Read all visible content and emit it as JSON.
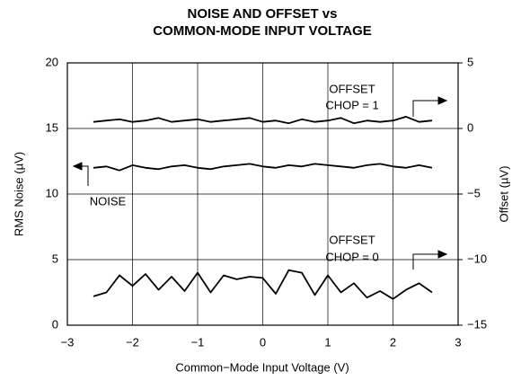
{
  "chart_data": {
    "type": "line",
    "title": [
      "NOISE AND OFFSET vs",
      "COMMON-MODE INPUT VOLTAGE"
    ],
    "x_label": "Common−Mode Input Voltage (V)",
    "y_label": "RMS Noise (µV)",
    "y2_label": "Offset (µV)",
    "annotations": [
      "OFFSET",
      "CHOP = 1",
      "NOISE",
      "OFFSET",
      "CHOP = 0"
    ],
    "x": [
      -2.6,
      -2.4,
      -2.2,
      -2.0,
      -1.8,
      -1.6,
      -1.4,
      -1.2,
      -1.0,
      -0.8,
      -0.6,
      -0.4,
      -0.2,
      0,
      0.2,
      0.4,
      0.6,
      0.8,
      1.0,
      1.2,
      1.4,
      1.6,
      1.8,
      2.0,
      2.2,
      2.4,
      2.6
    ],
    "series": [
      {
        "name": "NOISE",
        "color": "#000000",
        "axis": "y",
        "values": [
          12.0,
          12.1,
          11.8,
          12.2,
          12.0,
          11.9,
          12.1,
          12.2,
          12.0,
          11.9,
          12.1,
          12.2,
          12.3,
          12.1,
          12.0,
          12.2,
          12.1,
          12.3,
          12.2,
          12.1,
          12.0,
          12.2,
          12.3,
          12.1,
          12.0,
          12.2,
          12.0
        ]
      },
      {
        "name": "OFFSET CHOP = 1",
        "color": "#000000",
        "axis": "y2",
        "values": [
          0.5,
          0.6,
          0.7,
          0.5,
          0.6,
          0.8,
          0.5,
          0.6,
          0.7,
          0.5,
          0.6,
          0.7,
          0.8,
          0.5,
          0.6,
          0.4,
          0.7,
          0.5,
          0.6,
          0.8,
          0.4,
          0.6,
          0.5,
          0.6,
          0.9,
          0.5,
          0.6
        ]
      },
      {
        "name": "OFFSET CHOP = 0",
        "color": "#000000",
        "axis": "y2",
        "values": [
          -12.8,
          -12.5,
          -11.2,
          -12.0,
          -11.1,
          -12.3,
          -11.3,
          -12.4,
          -11.0,
          -12.5,
          -11.2,
          -11.5,
          -11.3,
          -11.4,
          -12.6,
          -10.8,
          -11.0,
          -12.7,
          -11.2,
          -12.5,
          -11.8,
          -12.9,
          -12.4,
          -13.0,
          -12.3,
          -11.8,
          -12.5
        ]
      }
    ],
    "xlim": [
      -3,
      3
    ],
    "xticks": [
      {
        "value": -3,
        "label": "−3"
      },
      {
        "value": -2,
        "label": "−2"
      },
      {
        "value": -1,
        "label": "−1"
      },
      0,
      1,
      2,
      3
    ],
    "ylim": [
      0,
      20
    ],
    "yticks": [
      0,
      5,
      10,
      15,
      20
    ],
    "y2lim": [
      -15,
      5
    ],
    "y2ticks": [
      {
        "value": -15,
        "label": "−15"
      },
      {
        "value": -10,
        "label": "−10"
      },
      {
        "value": -5,
        "label": "−5"
      },
      0,
      5
    ],
    "grid": true
  }
}
